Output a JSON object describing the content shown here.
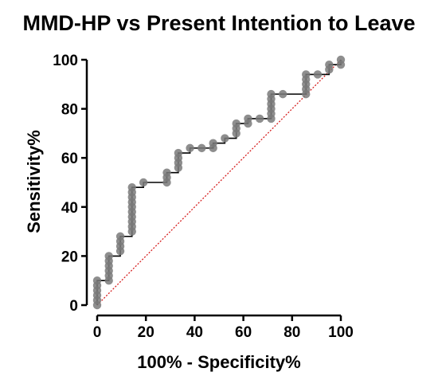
{
  "chart_data": {
    "type": "line",
    "title": "MMD-HP vs Present Intention to Leave",
    "xlabel": "100% - Specificity%",
    "ylabel": "Sensitivity%",
    "xlim": [
      0,
      100
    ],
    "ylim": [
      0,
      100
    ],
    "xticks": [
      0,
      20,
      40,
      60,
      80,
      100
    ],
    "yticks": [
      0,
      20,
      40,
      60,
      80,
      100
    ],
    "grid": false,
    "series": [
      {
        "kind": "roc-curve",
        "step": true,
        "color": "#000000",
        "marker_color": "#7a7a7a",
        "points": [
          [
            0,
            0
          ],
          [
            0,
            2
          ],
          [
            0,
            4
          ],
          [
            0,
            6
          ],
          [
            0,
            8
          ],
          [
            0,
            10
          ],
          [
            4.8,
            10
          ],
          [
            4.8,
            12
          ],
          [
            4.8,
            14
          ],
          [
            4.8,
            16
          ],
          [
            4.8,
            18
          ],
          [
            4.8,
            20
          ],
          [
            9.5,
            22
          ],
          [
            9.5,
            24
          ],
          [
            9.5,
            26
          ],
          [
            9.5,
            28
          ],
          [
            14.3,
            30
          ],
          [
            14.3,
            32
          ],
          [
            14.3,
            34
          ],
          [
            14.3,
            36
          ],
          [
            14.3,
            38
          ],
          [
            14.3,
            40
          ],
          [
            14.3,
            42
          ],
          [
            14.3,
            44
          ],
          [
            14.3,
            46
          ],
          [
            14.3,
            48
          ],
          [
            19,
            50
          ],
          [
            28.6,
            50
          ],
          [
            28.6,
            52
          ],
          [
            28.6,
            54
          ],
          [
            33.3,
            56
          ],
          [
            33.3,
            58
          ],
          [
            33.3,
            60
          ],
          [
            33.3,
            62
          ],
          [
            38.1,
            64
          ],
          [
            42.9,
            64
          ],
          [
            47.6,
            64
          ],
          [
            47.6,
            66
          ],
          [
            52.4,
            68
          ],
          [
            57.1,
            70
          ],
          [
            57.1,
            72
          ],
          [
            57.1,
            74
          ],
          [
            61.9,
            74
          ],
          [
            61.9,
            76
          ],
          [
            66.7,
            76
          ],
          [
            71.4,
            76
          ],
          [
            71.4,
            78
          ],
          [
            71.4,
            80
          ],
          [
            71.4,
            82
          ],
          [
            71.4,
            84
          ],
          [
            71.4,
            86
          ],
          [
            76.2,
            86
          ],
          [
            85.7,
            86
          ],
          [
            85.7,
            88
          ],
          [
            85.7,
            90
          ],
          [
            85.7,
            92
          ],
          [
            85.7,
            94
          ],
          [
            90.5,
            94
          ],
          [
            95.2,
            96
          ],
          [
            95.2,
            98
          ],
          [
            100,
            98
          ],
          [
            100,
            100
          ]
        ]
      },
      {
        "kind": "reference-line",
        "style": "dotted",
        "color": "#d62020",
        "points": [
          [
            0,
            0
          ],
          [
            100,
            100
          ]
        ]
      }
    ]
  }
}
